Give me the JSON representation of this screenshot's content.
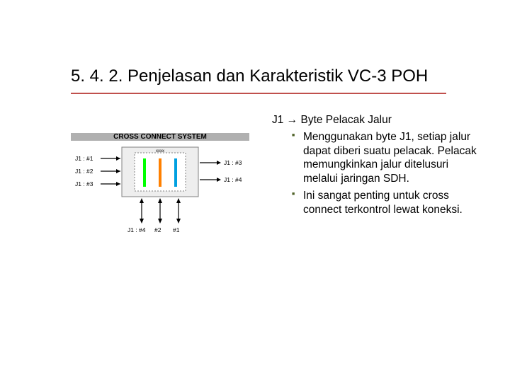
{
  "colors": {
    "titleUnderline": "#c0504d",
    "bulletMarker": "#4f6228",
    "diagramHeaderBg": "#b0b0b0",
    "chipFill": "#eeeeee",
    "chipBorder": "#808080",
    "innerBar1": "#00ff00",
    "innerBar2": "#ff8000",
    "innerBar3": "#00a0e0"
  },
  "title": "5. 4. 2. Penjelasan dan Karakteristik VC-3 POH",
  "right": {
    "lead": "J1 → Byte Pelacak Jalur",
    "bullets": [
      "Menggunakan byte J1, setiap jalur dapat diberi suatu pelacak. Pelacak memungkinkan jalur ditelusuri melalui jaringan SDH.",
      "Ini sangat penting untuk cross connect terkontrol lewat koneksi."
    ]
  },
  "diagram": {
    "header": "CROSS CONNECT SYSTEM",
    "leftPins": [
      "J1 : #1",
      "J1 : #2",
      "J1 : #3"
    ],
    "rightPins": [
      "J1 : #3",
      "J1 : #4"
    ],
    "bottomPins": [
      "J1 : #4",
      "#2",
      "#1"
    ],
    "innerTopLabel": "xxxx"
  }
}
